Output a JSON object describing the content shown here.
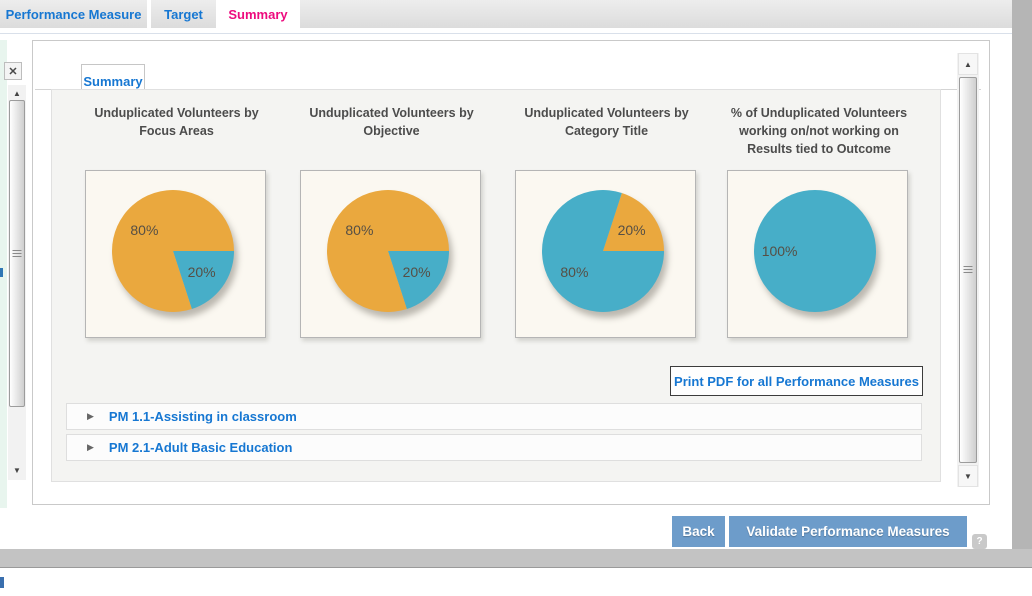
{
  "tabs": {
    "items": [
      {
        "label": "Performance Measure",
        "active": false
      },
      {
        "label": "Target",
        "active": false
      },
      {
        "label": "Summary",
        "active": true
      }
    ]
  },
  "panel": {
    "subtab_label": "Summary"
  },
  "chart_data": [
    {
      "type": "pie",
      "title": "Unduplicated Volunteers by Focus Areas",
      "start_angle": 0,
      "slices": [
        {
          "label": "20%",
          "value": 20,
          "color": "#47AEC8"
        },
        {
          "label": "80%",
          "value": 80,
          "color": "#EAA83E"
        }
      ]
    },
    {
      "type": "pie",
      "title": "Unduplicated Volunteers by Objective",
      "start_angle": 0,
      "slices": [
        {
          "label": "20%",
          "value": 20,
          "color": "#47AEC8"
        },
        {
          "label": "80%",
          "value": 80,
          "color": "#EAA83E"
        }
      ]
    },
    {
      "type": "pie",
      "title": "Unduplicated Volunteers by Category Title",
      "start_angle": -72,
      "slices": [
        {
          "label": "20%",
          "value": 20,
          "color": "#EAA83E"
        },
        {
          "label": "80%",
          "value": 80,
          "color": "#47AEC8"
        }
      ]
    },
    {
      "type": "pie",
      "title": "% of Unduplicated Volunteers working on/not working on Results tied to Outcome",
      "start_angle": 0,
      "slices": [
        {
          "label": "100%",
          "value": 100,
          "color": "#47AEC8"
        }
      ]
    }
  ],
  "print_button_label": "Print PDF for all Performance Measures",
  "accordions": [
    {
      "label": "PM 1.1-Assisting in classroom"
    },
    {
      "label": "PM 2.1-Adult Basic Education"
    }
  ],
  "footer": {
    "back_label": "Back",
    "validate_label": "Validate Performance Measures",
    "help_label": "?"
  },
  "icons": {
    "close": "✕",
    "scroll_up": "▲",
    "scroll_down": "▼",
    "expand": "▶"
  },
  "colors": {
    "accent_blue": "#1677d2",
    "active_tab_pink": "#ed0b7e",
    "pie_orange": "#EAA83E",
    "pie_teal": "#47AEC8",
    "button_blue": "#6d9cca"
  }
}
